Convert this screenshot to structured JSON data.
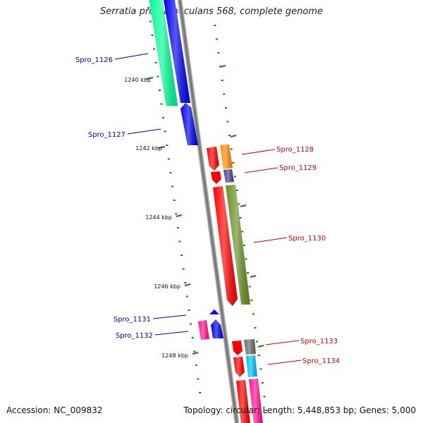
{
  "title": "Serratia proteamaculans 568, complete genome",
  "accession": "Accession: NC_009832",
  "topology": "Topology: circular; Length: 5,448,853 bp; Genes: 5,000",
  "ticks": [
    "1240 kbp",
    "1242 kbp",
    "1244 kbp",
    "1246 kbp",
    "1248 kbp"
  ],
  "genes": [
    {
      "name": "Spro_1126",
      "strand": "reverse",
      "color": "#00ff99"
    },
    {
      "name": "",
      "strand": "reverse",
      "color": "#0000ee"
    },
    {
      "name": "Spro_1127",
      "strand": "reverse",
      "color": "#0000ee"
    },
    {
      "name": "Spro_1128",
      "strand": "forward",
      "color": "#ff8c00"
    },
    {
      "name": "",
      "strand": "forward",
      "color": "#ff0000"
    },
    {
      "name": "Spro_1129",
      "strand": "forward",
      "color": "#4b3f8f"
    },
    {
      "name": "",
      "strand": "forward",
      "color": "#ff0000"
    },
    {
      "name": "",
      "strand": "forward",
      "color": "#ff0000"
    },
    {
      "name": "Spro_1130",
      "strand": "forward",
      "color": "#6b8e23"
    },
    {
      "name": "",
      "strand": "reverse",
      "color": "#0000ee"
    },
    {
      "name": "Spro_1131",
      "strand": "reverse",
      "color": "#0000ee"
    },
    {
      "name": "Spro_1132",
      "strand": "reverse",
      "color": "#ff1493"
    },
    {
      "name": "Spro_1133",
      "strand": "forward",
      "color": "#696969"
    },
    {
      "name": "",
      "strand": "forward",
      "color": "#ff0000"
    },
    {
      "name": "",
      "strand": "forward",
      "color": "#ff0000"
    },
    {
      "name": "Spro_1134",
      "strand": "forward",
      "color": "#00bfff"
    },
    {
      "name": "",
      "strand": "forward",
      "color": "#ff0000"
    },
    {
      "name": "",
      "strand": "forward",
      "color": "#ff1493"
    }
  ],
  "colors": {
    "backbone": "#8a8a8a",
    "forward_label": "#cc0000",
    "reverse_label": "#0000aa",
    "tick": "#1a7a1a"
  }
}
